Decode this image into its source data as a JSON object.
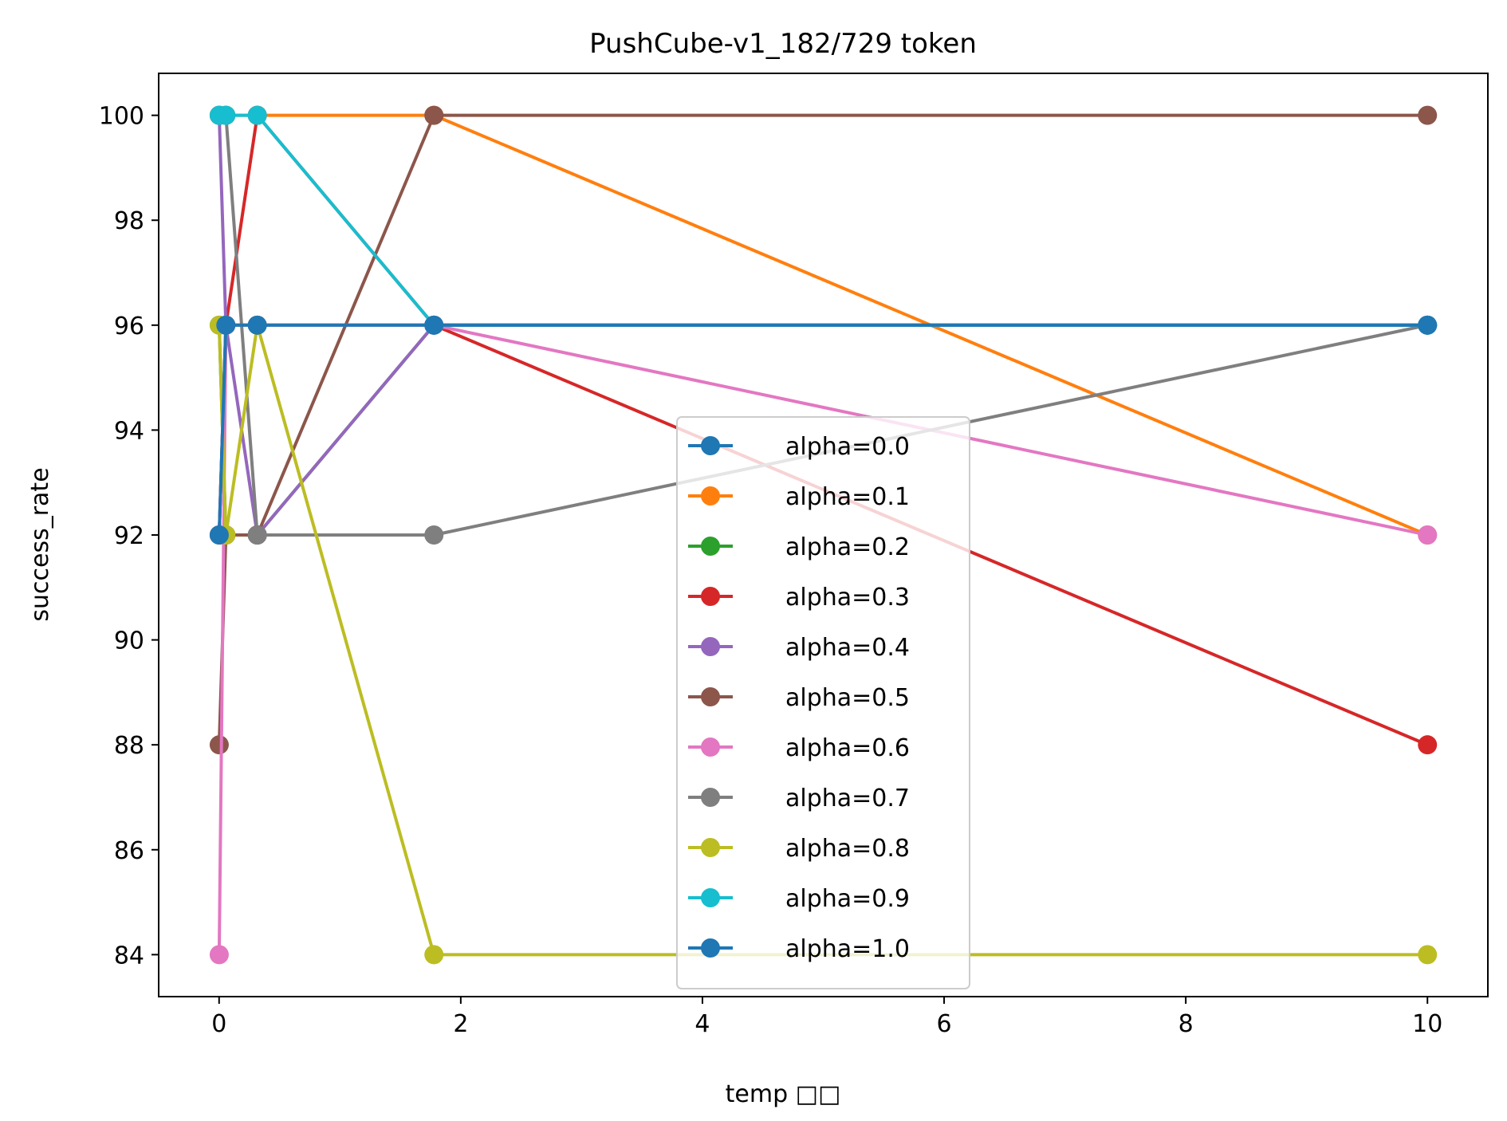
{
  "chart_data": {
    "type": "line",
    "title": "PushCube-v1_182/729 token",
    "xlabel": "temp □□",
    "ylabel": "success_rate",
    "xlim": [
      -0.5,
      10.5
    ],
    "ylim": [
      83.2,
      100.8
    ],
    "xticks": [
      0,
      2,
      4,
      6,
      8,
      10
    ],
    "yticks": [
      84,
      86,
      88,
      90,
      92,
      94,
      96,
      98,
      100
    ],
    "x": [
      0.001,
      0.0562,
      0.316,
      1.778,
      10
    ],
    "legend_position": "lower-center",
    "grid": false,
    "series": [
      {
        "name": "alpha=0.0",
        "color": "#1f77b4",
        "values": [
          92,
          96,
          96,
          96,
          96
        ]
      },
      {
        "name": "alpha=0.1",
        "color": "#ff7f0e",
        "values": [
          100,
          100,
          100,
          100,
          92
        ]
      },
      {
        "name": "alpha=0.2",
        "color": "#2ca02c",
        "values": [
          96,
          92,
          92,
          96,
          96
        ]
      },
      {
        "name": "alpha=0.3",
        "color": "#d62728",
        "values": [
          92,
          96,
          100,
          96,
          88
        ]
      },
      {
        "name": "alpha=0.4",
        "color": "#9467bd",
        "values": [
          100,
          96,
          92,
          96,
          96
        ]
      },
      {
        "name": "alpha=0.5",
        "color": "#8c564b",
        "values": [
          88,
          92,
          92,
          100,
          100
        ]
      },
      {
        "name": "alpha=0.6",
        "color": "#e377c2",
        "values": [
          84,
          96,
          96,
          96,
          92
        ]
      },
      {
        "name": "alpha=0.7",
        "color": "#7f7f7f",
        "values": [
          100,
          100,
          92,
          92,
          96
        ]
      },
      {
        "name": "alpha=0.8",
        "color": "#bcbd22",
        "values": [
          96,
          92,
          96,
          84,
          84
        ]
      },
      {
        "name": "alpha=0.9",
        "color": "#17becf",
        "values": [
          100,
          100,
          100,
          96,
          96
        ]
      },
      {
        "name": "alpha=1.0",
        "color": "#1f77b4",
        "values": [
          92,
          96,
          96,
          96,
          96
        ]
      }
    ]
  }
}
